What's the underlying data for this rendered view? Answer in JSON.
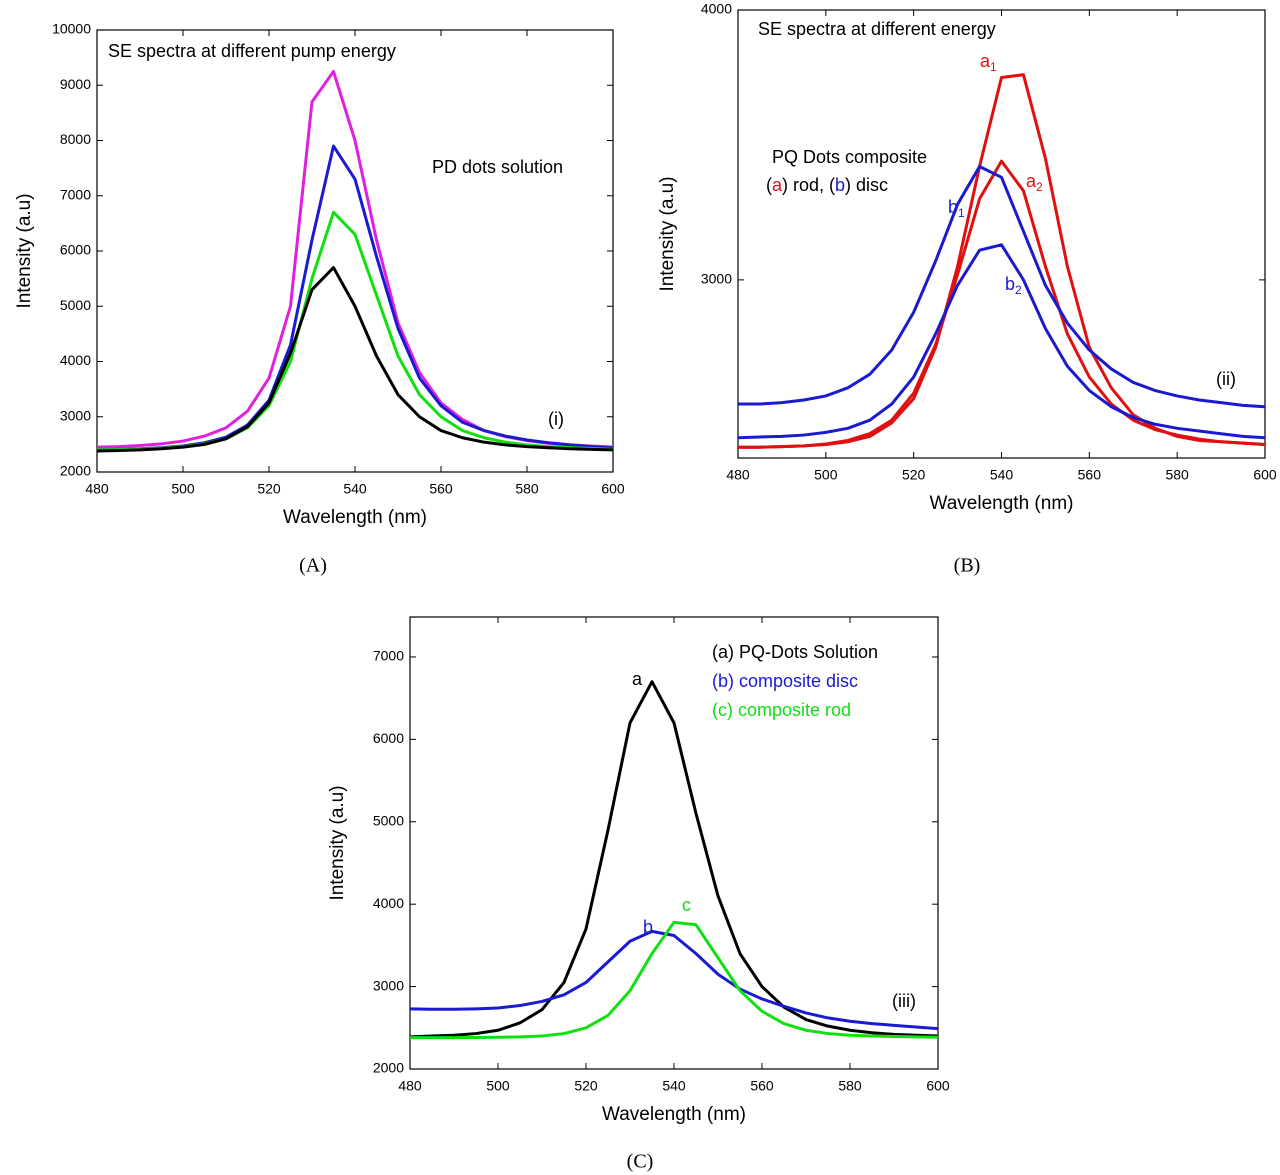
{
  "chart_data": [
    {
      "type": "line",
      "title": "SE spectra at different pump energy",
      "caption": "(A)",
      "x_label": "Wavelength (nm)",
      "y_label": "Intensity (a.u)",
      "x": [
        480,
        485,
        490,
        495,
        500,
        505,
        510,
        515,
        520,
        525,
        530,
        535,
        540,
        545,
        550,
        555,
        560,
        565,
        570,
        575,
        580,
        585,
        590,
        595,
        600
      ],
      "xlim": [
        480,
        600
      ],
      "xticks": [
        480,
        500,
        520,
        540,
        560,
        580,
        600
      ],
      "ylim": [
        2000,
        10000
      ],
      "yticks": [
        2000,
        3000,
        4000,
        5000,
        6000,
        7000,
        8000,
        9000,
        10000
      ],
      "series": [
        {
          "color": "#e020e0",
          "values": [
            2450,
            2460,
            2480,
            2510,
            2560,
            2650,
            2800,
            3100,
            3700,
            5000,
            8700,
            9250,
            8000,
            6200,
            4700,
            3800,
            3250,
            2950,
            2750,
            2640,
            2570,
            2520,
            2490,
            2470,
            2450
          ]
        },
        {
          "color": "#1a1ad0",
          "values": [
            2400,
            2410,
            2420,
            2440,
            2470,
            2530,
            2630,
            2850,
            3300,
            4300,
            6200,
            7900,
            7300,
            5900,
            4600,
            3700,
            3200,
            2900,
            2750,
            2650,
            2580,
            2530,
            2490,
            2460,
            2440
          ]
        },
        {
          "color": "#10e010",
          "values": [
            2400,
            2405,
            2415,
            2430,
            2460,
            2510,
            2600,
            2800,
            3200,
            4000,
            5500,
            6700,
            6300,
            5200,
            4100,
            3400,
            3000,
            2750,
            2620,
            2540,
            2490,
            2460,
            2440,
            2425,
            2410
          ]
        },
        {
          "color": "#000000",
          "values": [
            2380,
            2390,
            2400,
            2420,
            2450,
            2500,
            2600,
            2820,
            3250,
            4150,
            5300,
            5700,
            5000,
            4100,
            3400,
            3000,
            2750,
            2620,
            2540,
            2490,
            2460,
            2440,
            2420,
            2410,
            2400
          ]
        }
      ],
      "annotations": [
        {
          "text": "PD dots solution"
        },
        {
          "text": "(i)"
        }
      ]
    },
    {
      "type": "line",
      "title": "SE spectra at different energy",
      "caption": "(B)",
      "x_label": "Wavelength (nm)",
      "y_label": "Intensity (a.u)",
      "x": [
        480,
        485,
        490,
        495,
        500,
        505,
        510,
        515,
        520,
        525,
        530,
        535,
        540,
        545,
        550,
        555,
        560,
        565,
        570,
        575,
        580,
        585,
        590,
        595,
        600
      ],
      "xlim": [
        480,
        600
      ],
      "xticks": [
        480,
        500,
        520,
        540,
        560,
        580,
        600
      ],
      "ylim": [
        2340,
        4000
      ],
      "yticks": [
        3000,
        4000
      ],
      "series": [
        {
          "color": "#e01010",
          "values": [
            2380,
            2380,
            2382,
            2385,
            2390,
            2400,
            2420,
            2470,
            2560,
            2750,
            3050,
            3420,
            3750,
            3760,
            3450,
            3050,
            2750,
            2600,
            2500,
            2450,
            2420,
            2405,
            2400,
            2395,
            2390
          ]
        },
        {
          "color": "#e01010",
          "values": [
            2380,
            2380,
            2382,
            2385,
            2392,
            2405,
            2430,
            2480,
            2580,
            2760,
            3020,
            3300,
            3440,
            3330,
            3050,
            2800,
            2640,
            2540,
            2480,
            2445,
            2425,
            2410,
            2400,
            2395,
            2390
          ]
        },
        {
          "color": "#1a1ad0",
          "values": [
            2540,
            2540,
            2545,
            2555,
            2570,
            2600,
            2650,
            2740,
            2880,
            3070,
            3280,
            3420,
            3380,
            3180,
            2980,
            2840,
            2740,
            2670,
            2620,
            2590,
            2570,
            2555,
            2545,
            2535,
            2530
          ]
        },
        {
          "color": "#1a1ad0",
          "values": [
            2415,
            2418,
            2420,
            2425,
            2435,
            2450,
            2480,
            2540,
            2640,
            2800,
            2980,
            3110,
            3130,
            3000,
            2820,
            2680,
            2590,
            2530,
            2490,
            2465,
            2450,
            2440,
            2430,
            2420,
            2415
          ]
        }
      ],
      "annotations": [
        {
          "text": "PQ Dots composite"
        },
        {
          "parts": [
            {
              "text": "("
            },
            {
              "text": "a",
              "color": "#e01010"
            },
            {
              "text": ") rod, ("
            },
            {
              "text": "b",
              "color": "#1a1ad0"
            },
            {
              "text": ") disc"
            }
          ]
        },
        {
          "text": "(ii)"
        },
        {
          "text": "a",
          "sub": "1",
          "color": "#e01010"
        },
        {
          "text": "a",
          "sub": "2",
          "color": "#e01010"
        },
        {
          "text": "b",
          "sub": "1",
          "color": "#1a1ad0"
        },
        {
          "text": "b",
          "sub": "2",
          "color": "#1a1ad0"
        }
      ]
    },
    {
      "type": "line",
      "caption": "(C)",
      "x_label": "Wavelength (nm)",
      "y_label": "Intensity (a.u)",
      "x": [
        480,
        485,
        490,
        495,
        500,
        505,
        510,
        515,
        520,
        525,
        530,
        535,
        540,
        545,
        550,
        555,
        560,
        565,
        570,
        575,
        580,
        585,
        590,
        595,
        600
      ],
      "xlim": [
        480,
        600
      ],
      "xticks": [
        480,
        500,
        520,
        540,
        560,
        580,
        600
      ],
      "ylim": [
        2000,
        7485
      ],
      "yticks": [
        2000,
        3000,
        4000,
        5000,
        6000,
        7000
      ],
      "legend": "upper right",
      "series": [
        {
          "name": "(a) PQ-Dots Solution",
          "color": "#000000",
          "values": [
            2390,
            2400,
            2410,
            2430,
            2470,
            2560,
            2720,
            3050,
            3700,
            4900,
            6200,
            6700,
            6200,
            5100,
            4100,
            3400,
            3000,
            2750,
            2600,
            2520,
            2470,
            2440,
            2420,
            2410,
            2400
          ]
        },
        {
          "name": "(b) composite disc",
          "color": "#1a1ad0",
          "values": [
            2730,
            2725,
            2725,
            2730,
            2740,
            2770,
            2820,
            2900,
            3050,
            3300,
            3550,
            3670,
            3620,
            3400,
            3150,
            2970,
            2850,
            2760,
            2680,
            2620,
            2580,
            2550,
            2530,
            2510,
            2490
          ]
        },
        {
          "name": "(c) composite rod",
          "color": "#10e010",
          "values": [
            2380,
            2380,
            2380,
            2382,
            2385,
            2390,
            2400,
            2430,
            2500,
            2650,
            2950,
            3400,
            3780,
            3750,
            3350,
            2950,
            2700,
            2550,
            2470,
            2430,
            2410,
            2400,
            2395,
            2390,
            2385
          ]
        }
      ],
      "annotations": [
        {
          "text": "a",
          "color": "#000000"
        },
        {
          "text": "b",
          "color": "#1a1ad0"
        },
        {
          "text": "c",
          "color": "#10e010"
        },
        {
          "text": "(iii)"
        }
      ]
    }
  ]
}
